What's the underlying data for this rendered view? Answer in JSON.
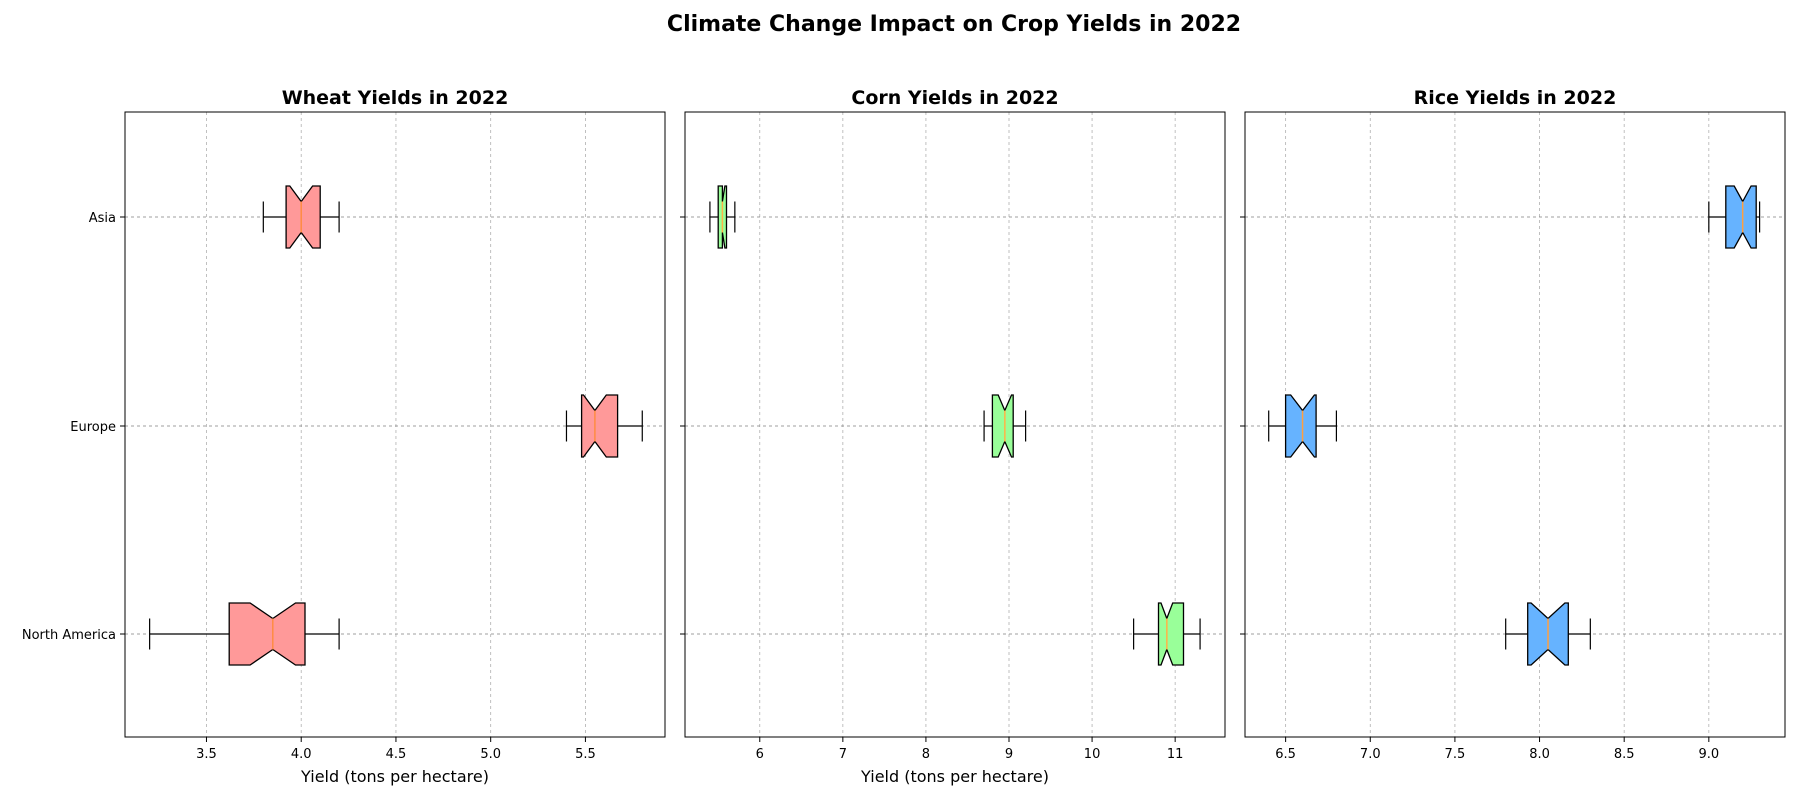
{
  "figure": {
    "suptitle": "Climate Change Impact on Crop Yields in 2022"
  },
  "chart_data": [
    {
      "type": "boxplot",
      "orientation": "horizontal",
      "notched": true,
      "title": "Wheat Yields in 2022",
      "xlabel": "Yield (tons per hectare)",
      "ylabel": "",
      "categories": [
        "North America",
        "Europe",
        "Asia"
      ],
      "xlim": [
        3.07,
        5.92
      ],
      "xticks": [
        "3.5",
        "4.0",
        "4.5",
        "5.0",
        "5.5"
      ],
      "grid": true,
      "box_color": "#ff9999",
      "median_color": "#ff8c42",
      "boxes": [
        {
          "category": "North America",
          "whislo": 3.2,
          "q1": 3.62,
          "med": 3.85,
          "q3": 4.02,
          "whishi": 4.2,
          "notch_lo": 3.73,
          "notch_hi": 3.97
        },
        {
          "category": "Europe",
          "whislo": 5.4,
          "q1": 5.48,
          "med": 5.55,
          "q3": 5.67,
          "whishi": 5.8,
          "notch_lo": 5.49,
          "notch_hi": 5.61
        },
        {
          "category": "Asia",
          "whislo": 3.8,
          "q1": 3.92,
          "med": 4.0,
          "q3": 4.1,
          "whishi": 4.2,
          "notch_lo": 3.94,
          "notch_hi": 4.06
        }
      ]
    },
    {
      "type": "boxplot",
      "orientation": "horizontal",
      "notched": true,
      "title": "Corn Yields in 2022",
      "xlabel": "Yield (tons per hectare)",
      "ylabel": "",
      "categories": [
        "North America",
        "Europe",
        "Asia"
      ],
      "xlim": [
        5.1,
        11.6
      ],
      "xticks": [
        "6",
        "7",
        "8",
        "9",
        "10",
        "11"
      ],
      "grid": true,
      "box_color": "#99ff99",
      "median_color": "#ffb347",
      "boxes": [
        {
          "category": "North America",
          "whislo": 10.5,
          "q1": 10.8,
          "med": 10.9,
          "q3": 11.1,
          "whishi": 11.3,
          "notch_lo": 10.83,
          "notch_hi": 10.97
        },
        {
          "category": "Europe",
          "whislo": 8.7,
          "q1": 8.8,
          "med": 8.95,
          "q3": 9.05,
          "whishi": 9.2,
          "notch_lo": 8.87,
          "notch_hi": 9.03
        },
        {
          "category": "Asia",
          "whislo": 5.4,
          "q1": 5.5,
          "med": 5.55,
          "q3": 5.6,
          "whishi": 5.7,
          "notch_lo": 5.55,
          "notch_hi": 5.58
        }
      ]
    },
    {
      "type": "boxplot",
      "orientation": "horizontal",
      "notched": true,
      "title": "Rice Yields in 2022",
      "xlabel": "",
      "ylabel": "",
      "categories": [
        "North America",
        "Europe",
        "Asia"
      ],
      "xlim": [
        6.26,
        9.45
      ],
      "xticks": [
        "6.5",
        "7.0",
        "7.5",
        "8.0",
        "8.5",
        "9.0"
      ],
      "grid": true,
      "box_color": "#66b3ff",
      "median_color": "#ff9f40",
      "boxes": [
        {
          "category": "North America",
          "whislo": 7.8,
          "q1": 7.93,
          "med": 8.05,
          "q3": 8.17,
          "whishi": 8.3,
          "notch_lo": 7.95,
          "notch_hi": 8.15
        },
        {
          "category": "Europe",
          "whislo": 6.4,
          "q1": 6.5,
          "med": 6.6,
          "q3": 6.68,
          "whishi": 6.8,
          "notch_lo": 6.53,
          "notch_hi": 6.67
        },
        {
          "category": "Asia",
          "whislo": 9.0,
          "q1": 9.1,
          "med": 9.2,
          "q3": 9.28,
          "whishi": 9.3,
          "notch_lo": 9.15,
          "notch_hi": 9.25
        }
      ]
    }
  ]
}
